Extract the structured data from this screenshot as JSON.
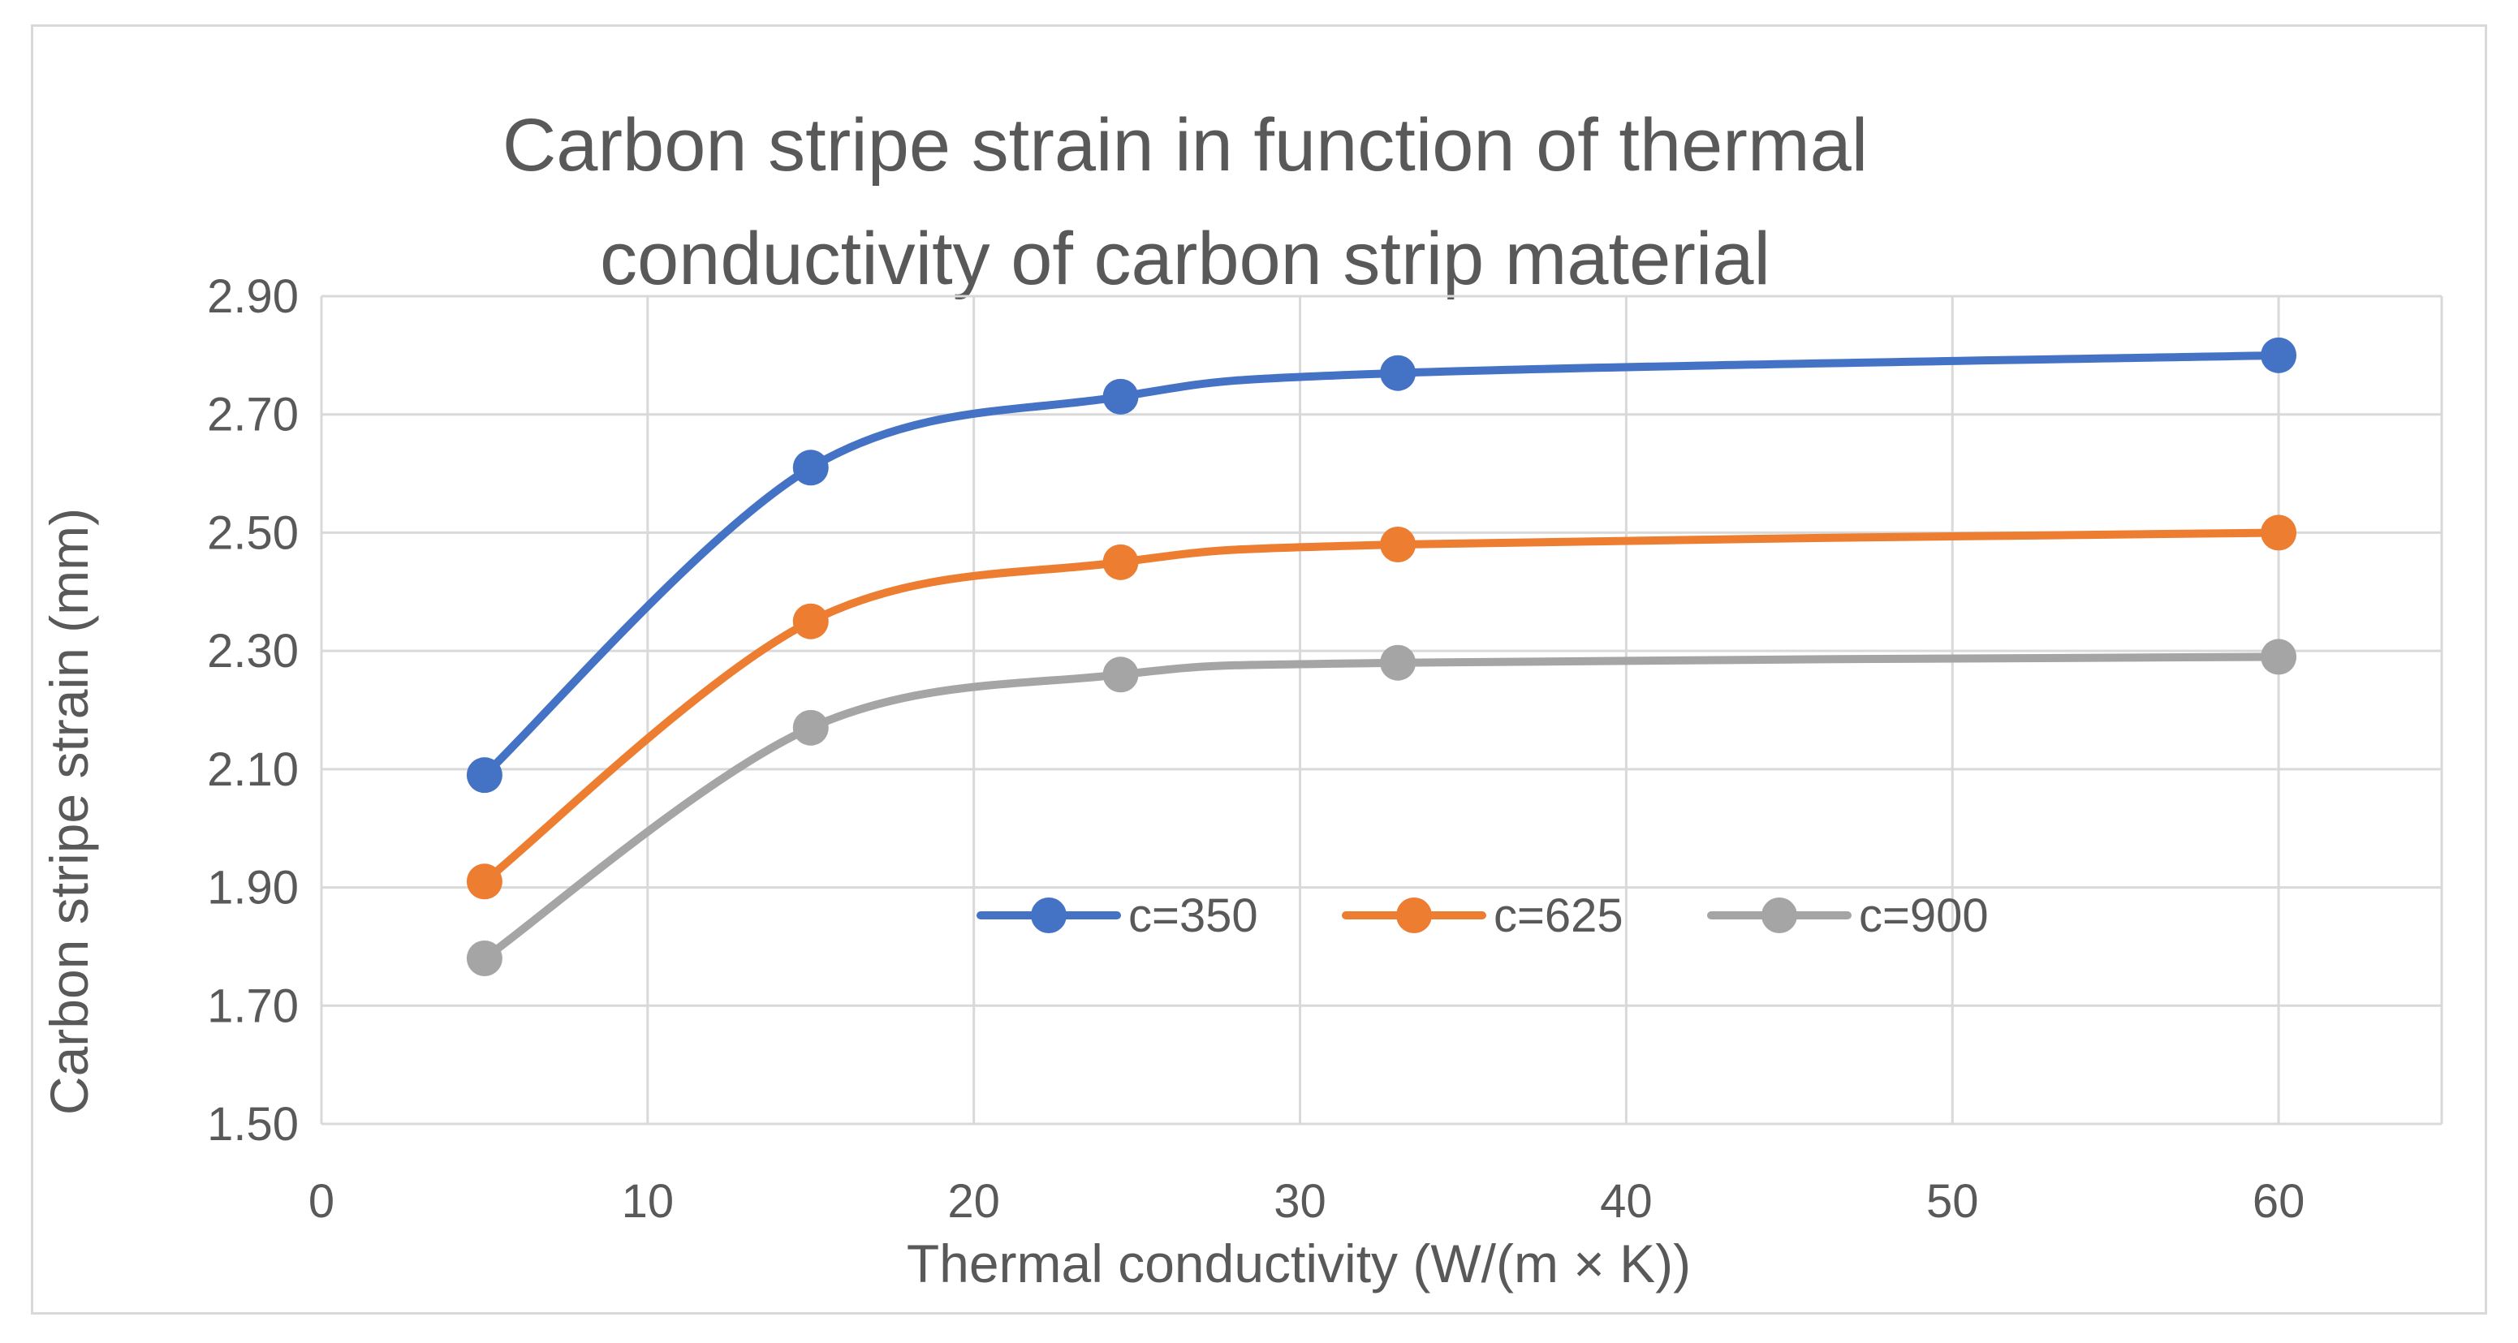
{
  "chart_data": {
    "type": "line",
    "title_lines": [
      "Carbon stripe strain in function of thermal",
      "conductivity of carbon strip material"
    ],
    "xlabel": "Thermal conductivity (W/(m × K))",
    "ylabel": "Carbon stripe strain (mm)",
    "xlim": [
      0,
      65
    ],
    "ylim": [
      1.5,
      2.9
    ],
    "x_ticks": [
      0,
      10,
      20,
      30,
      40,
      50,
      60
    ],
    "y_ticks": [
      1.5,
      1.7,
      1.9,
      2.1,
      2.3,
      2.5,
      2.7,
      2.9
    ],
    "y_tick_labels": [
      "1.50",
      "1.70",
      "1.90",
      "2.10",
      "2.30",
      "2.50",
      "2.70",
      "2.90"
    ],
    "x_tick_labels": [
      "0",
      "10",
      "20",
      "30",
      "40",
      "50",
      "60"
    ],
    "grid": true,
    "smooth": true,
    "legend_position": "inside-center",
    "x": [
      5,
      15,
      24.5,
      33,
      60
    ],
    "series": [
      {
        "name": "c=350",
        "color": "#4472c4",
        "values": [
          2.09,
          2.61,
          2.73,
          2.77,
          2.8
        ]
      },
      {
        "name": "c=625",
        "color": "#ed7d31",
        "values": [
          1.91,
          2.35,
          2.45,
          2.48,
          2.5
        ]
      },
      {
        "name": "c=900",
        "color": "#a5a5a5",
        "values": [
          1.78,
          2.17,
          2.26,
          2.28,
          2.29
        ]
      }
    ]
  }
}
